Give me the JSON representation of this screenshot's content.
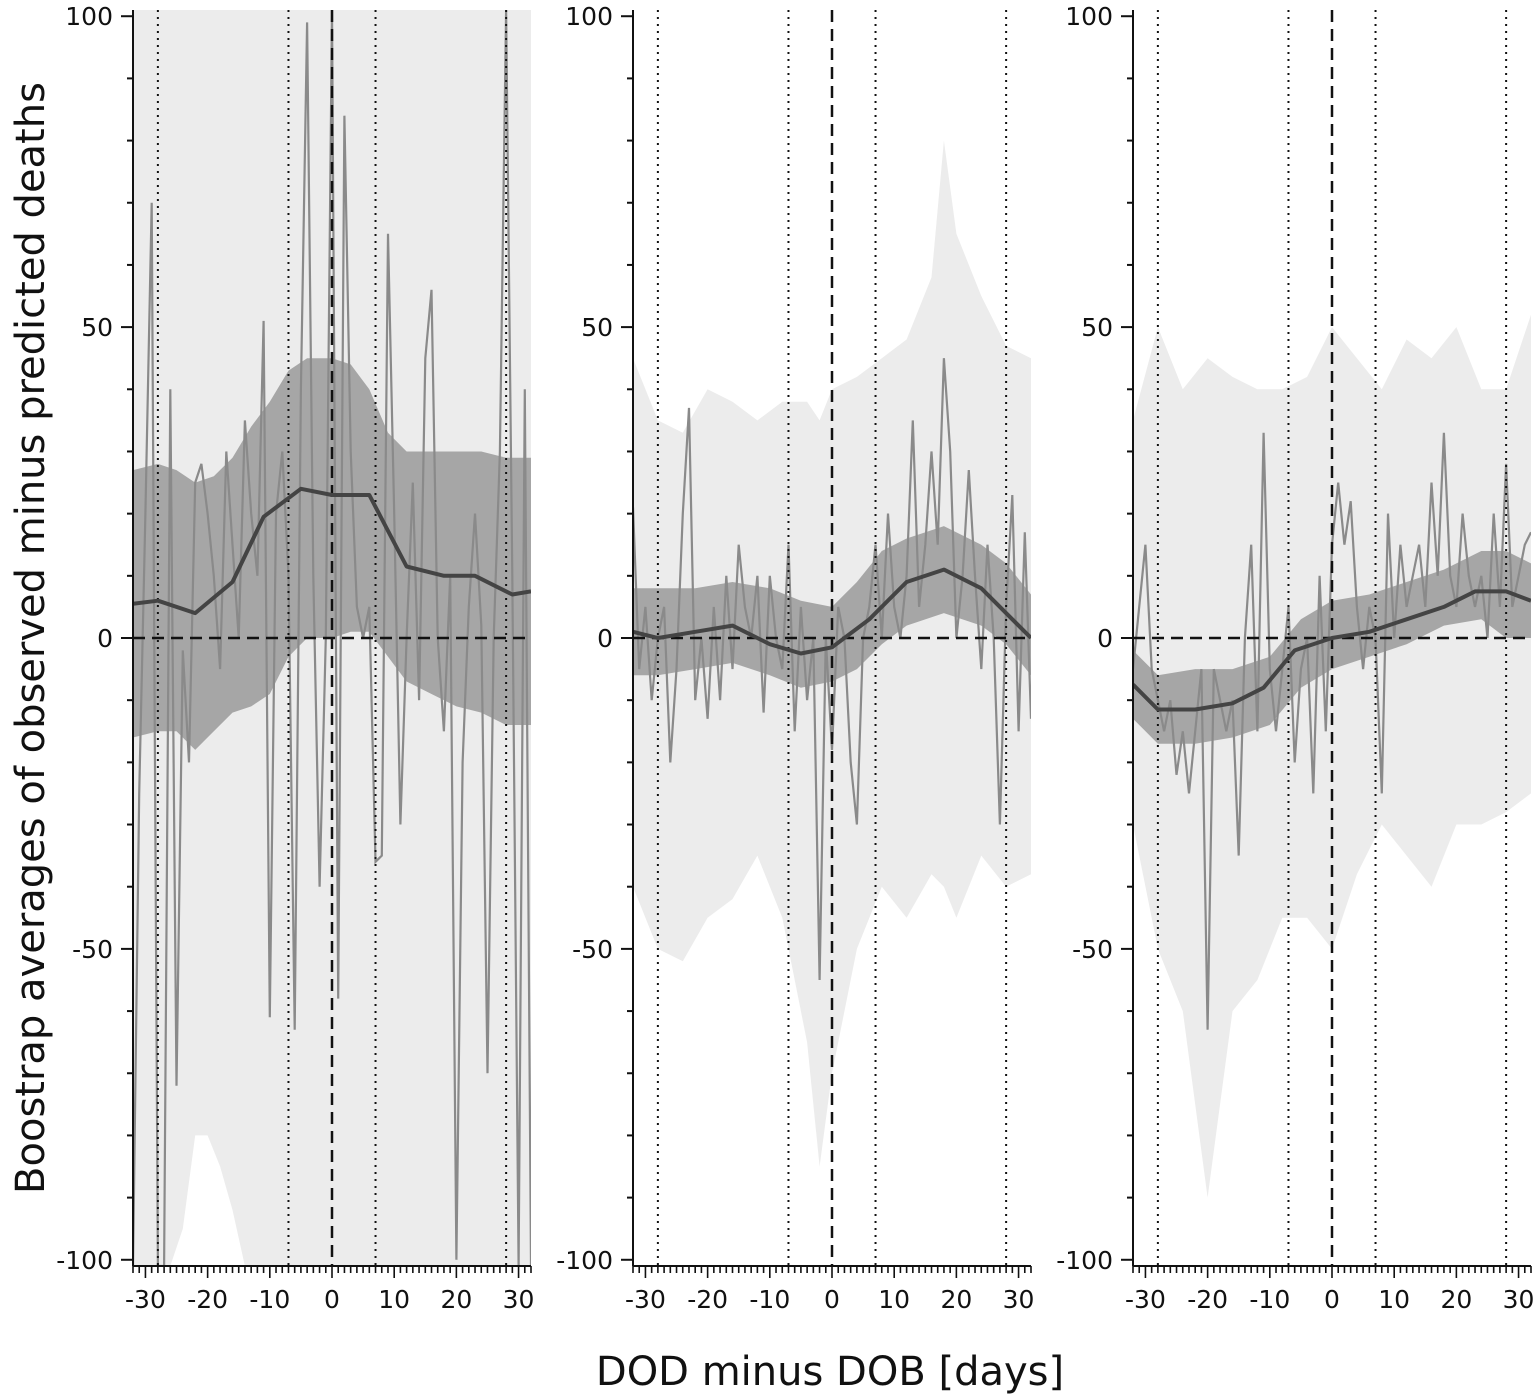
{
  "figure": {
    "xlabel": "DOD minus DOB [days]",
    "ylabel": "Boostrap averages of observed minus predicted deaths"
  },
  "chart_data": [
    {
      "type": "line",
      "panel": "left",
      "xlim": [
        -32,
        32
      ],
      "ylim": [
        -101,
        101
      ],
      "x_ticks": [
        -30,
        -20,
        -10,
        0,
        10,
        20,
        30
      ],
      "x_tick_labels": [
        "-30",
        "-20",
        "-10",
        "0",
        "10",
        "20",
        "30"
      ],
      "y_ticks": [
        -100,
        -50,
        0,
        50,
        100
      ],
      "y_tick_labels": [
        "-100",
        "-50",
        "0",
        "50",
        "100"
      ],
      "reference_lines": {
        "dashed": [
          0
        ],
        "dotted": [
          -28,
          -7,
          7,
          28
        ],
        "horizontal_dashed": 0
      },
      "outer_band": {
        "x": [
          -32,
          -30,
          -28,
          -26,
          -24,
          -22,
          -20,
          -18,
          -16,
          -14,
          -12,
          -10,
          -8,
          -6,
          -4,
          -2,
          0,
          2,
          4,
          6,
          8,
          10,
          12,
          14,
          16,
          18,
          20,
          22,
          24,
          26,
          28,
          30,
          32
        ],
        "lower": [
          -101,
          -101,
          -101,
          -101,
          -95,
          -80,
          -80,
          -85,
          -92,
          -101,
          -101,
          -101,
          -101,
          -101,
          -101,
          -101,
          -101,
          -101,
          -101,
          -101,
          -101,
          -101,
          -101,
          -101,
          -101,
          -101,
          -101,
          -101,
          -101,
          -101,
          -101,
          -101,
          -101
        ],
        "upper": [
          101,
          101,
          101,
          101,
          101,
          101,
          101,
          101,
          101,
          101,
          101,
          101,
          101,
          101,
          101,
          101,
          101,
          101,
          101,
          101,
          101,
          101,
          101,
          101,
          101,
          101,
          101,
          101,
          101,
          101,
          101,
          101,
          101
        ]
      },
      "inner_band": {
        "x": [
          -32,
          -28,
          -25,
          -22,
          -19,
          -16,
          -13,
          -10,
          -7,
          -4,
          0,
          3,
          6,
          9,
          12,
          16,
          20,
          24,
          28,
          32
        ],
        "lower": [
          -16,
          -15,
          -15,
          -18,
          -15,
          -12,
          -11,
          -9,
          -3,
          0,
          0,
          1,
          1,
          -3,
          -7,
          -9,
          -11,
          -12,
          -14,
          -14
        ],
        "upper": [
          27,
          28,
          27,
          25,
          26,
          29,
          34,
          38,
          43,
          45,
          45,
          44,
          40,
          33,
          30,
          30,
          30,
          30,
          29,
          29
        ]
      },
      "mean_line": {
        "x": [
          -32,
          -28,
          -22,
          -16,
          -11,
          -5,
          0,
          6,
          12,
          18,
          23,
          29,
          32
        ],
        "y": [
          5.5,
          6,
          4,
          9,
          19.5,
          24,
          23,
          23,
          11.5,
          10,
          10,
          7,
          7.5
        ]
      },
      "raw_series": {
        "x": [
          -32,
          -31,
          -30,
          -29,
          -28,
          -27,
          -26,
          -25,
          -24,
          -23,
          -22,
          -21,
          -20,
          -19,
          -18,
          -17,
          -16,
          -15,
          -14,
          -13,
          -12,
          -11,
          -10,
          -9,
          -8,
          -7,
          -6,
          -5,
          -4,
          -3,
          -2,
          -1,
          0,
          1,
          2,
          3,
          4,
          5,
          6,
          7,
          8,
          9,
          10,
          11,
          12,
          13,
          14,
          15,
          16,
          17,
          18,
          19,
          20,
          21,
          22,
          23,
          24,
          25,
          26,
          27,
          28,
          29,
          30,
          31,
          32
        ],
        "y": [
          -101,
          -25,
          20,
          70,
          -101,
          -101,
          40,
          -72,
          -2,
          -20,
          25,
          28,
          20,
          10,
          -5,
          30,
          15,
          0,
          35,
          20,
          10,
          51,
          -61,
          20,
          30,
          10,
          -63,
          40,
          99,
          10,
          -40,
          0,
          101,
          -58,
          84,
          30,
          5,
          0,
          5,
          -36,
          -35,
          65,
          20,
          -30,
          0,
          25,
          -10,
          45,
          56,
          0,
          -15,
          10,
          -100,
          -20,
          5,
          20,
          2,
          -70,
          0,
          30,
          101,
          10,
          -101,
          40,
          -101
        ]
      }
    },
    {
      "type": "line",
      "panel": "middle",
      "xlim": [
        -32,
        32
      ],
      "ylim": [
        -101,
        101
      ],
      "x_ticks": [
        -30,
        -20,
        -10,
        0,
        10,
        20,
        30
      ],
      "x_tick_labels": [
        "-30",
        "-20",
        "-10",
        "0",
        "10",
        "20",
        "30"
      ],
      "y_ticks": [
        -100,
        -50,
        0,
        50,
        100
      ],
      "y_tick_labels": [
        "-100",
        "-50",
        "0",
        "50",
        "100"
      ],
      "reference_lines": {
        "dashed": [
          0
        ],
        "dotted": [
          -28,
          -7,
          7,
          28
        ],
        "horizontal_dashed": 0
      },
      "outer_band": {
        "x": [
          -32,
          -28,
          -24,
          -20,
          -16,
          -12,
          -8,
          -4,
          -2,
          0,
          4,
          8,
          12,
          16,
          18,
          20,
          24,
          28,
          32
        ],
        "lower": [
          -40,
          -50,
          -52,
          -45,
          -42,
          -35,
          -45,
          -65,
          -85,
          -70,
          -50,
          -40,
          -45,
          -38,
          -40,
          -45,
          -35,
          -40,
          -38
        ],
        "upper": [
          45,
          35,
          33,
          40,
          38,
          35,
          38,
          38,
          35,
          40,
          42,
          45,
          48,
          58,
          80,
          65,
          55,
          47,
          45
        ]
      },
      "inner_band": {
        "x": [
          -32,
          -28,
          -22,
          -16,
          -10,
          -5,
          0,
          4,
          8,
          12,
          18,
          24,
          28,
          32
        ],
        "lower": [
          -6,
          -6,
          -5,
          -4,
          -6,
          -8,
          -7,
          -5,
          -1,
          2,
          4,
          2,
          -1,
          -6
        ],
        "upper": [
          8,
          8,
          8,
          9,
          8,
          6,
          5,
          9,
          14,
          16,
          18,
          15,
          12,
          7
        ]
      },
      "mean_line": {
        "x": [
          -32,
          -28,
          -22,
          -16,
          -10,
          -5,
          0,
          6,
          12,
          18,
          24,
          32
        ],
        "y": [
          1,
          0,
          1,
          2,
          -1,
          -2.5,
          -1.5,
          3,
          9,
          11,
          8,
          0
        ]
      },
      "raw_series": {
        "x": [
          -32,
          -31,
          -30,
          -29,
          -28,
          -27,
          -26,
          -25,
          -24,
          -23,
          -22,
          -21,
          -20,
          -19,
          -18,
          -17,
          -16,
          -15,
          -14,
          -13,
          -12,
          -11,
          -10,
          -9,
          -8,
          -7,
          -6,
          -5,
          -4,
          -3,
          -2,
          -1,
          0,
          1,
          2,
          3,
          4,
          5,
          6,
          7,
          8,
          9,
          10,
          11,
          12,
          13,
          14,
          15,
          16,
          17,
          18,
          19,
          20,
          21,
          22,
          23,
          24,
          25,
          26,
          27,
          28,
          29,
          30,
          31,
          32
        ],
        "y": [
          21,
          -5,
          5,
          -10,
          0,
          5,
          -20,
          -5,
          20,
          37,
          -10,
          0,
          -13,
          5,
          -10,
          10,
          -5,
          15,
          5,
          0,
          10,
          -12,
          10,
          0,
          -5,
          15,
          -15,
          5,
          -10,
          0,
          -55,
          0,
          -18,
          5,
          0,
          -20,
          -30,
          0,
          5,
          15,
          0,
          20,
          5,
          0,
          10,
          35,
          5,
          15,
          30,
          15,
          45,
          30,
          0,
          10,
          27,
          10,
          -5,
          15,
          0,
          -30,
          5,
          23,
          -15,
          17,
          -13
        ]
      }
    },
    {
      "type": "line",
      "panel": "right",
      "xlim": [
        -32,
        32
      ],
      "ylim": [
        -101,
        101
      ],
      "x_ticks": [
        -30,
        -20,
        -10,
        0,
        10,
        20,
        30
      ],
      "x_tick_labels": [
        "-30",
        "-20",
        "-10",
        "0",
        "10",
        "20",
        "30"
      ],
      "y_ticks": [
        -100,
        -50,
        0,
        50,
        100
      ],
      "y_tick_labels": [
        "-100",
        "-50",
        "0",
        "50",
        "100"
      ],
      "reference_lines": {
        "dashed": [
          0
        ],
        "dotted": [
          -28,
          -7,
          7,
          28
        ],
        "horizontal_dashed": 0
      },
      "outer_band": {
        "x": [
          -32,
          -28,
          -24,
          -20,
          -16,
          -12,
          -8,
          -4,
          0,
          4,
          8,
          12,
          16,
          20,
          24,
          28,
          32
        ],
        "lower": [
          -30,
          -50,
          -60,
          -90,
          -60,
          -55,
          -45,
          -45,
          -50,
          -38,
          -30,
          -35,
          -40,
          -30,
          -30,
          -28,
          -25
        ],
        "upper": [
          35,
          50,
          40,
          45,
          42,
          40,
          40,
          42,
          50,
          45,
          40,
          48,
          45,
          50,
          40,
          40,
          52
        ]
      },
      "inner_band": {
        "x": [
          -32,
          -28,
          -22,
          -16,
          -10,
          -5,
          0,
          6,
          12,
          18,
          24,
          28,
          32
        ],
        "lower": [
          -13,
          -17,
          -17,
          -16,
          -14,
          -8,
          -5,
          -3,
          -1,
          2,
          3,
          0,
          0
        ],
        "upper": [
          -2,
          -6,
          -5,
          -5,
          -3,
          3,
          6,
          7,
          9,
          11,
          14,
          14,
          12
        ]
      },
      "mean_line": {
        "x": [
          -32,
          -28,
          -22,
          -16,
          -11,
          -6,
          0,
          6,
          12,
          18,
          23,
          28,
          32
        ],
        "y": [
          -7.5,
          -11.5,
          -11.5,
          -10.5,
          -8,
          -2,
          0,
          1,
          3,
          5,
          7.5,
          7.5,
          6
        ]
      },
      "raw_series": {
        "x": [
          -32,
          -31,
          -30,
          -29,
          -28,
          -27,
          -26,
          -25,
          -24,
          -23,
          -22,
          -21,
          -20,
          -19,
          -18,
          -17,
          -16,
          -15,
          -14,
          -13,
          -12,
          -11,
          -10,
          -9,
          -8,
          -7,
          -6,
          -5,
          -4,
          -3,
          -2,
          -1,
          0,
          1,
          2,
          3,
          4,
          5,
          6,
          7,
          8,
          9,
          10,
          11,
          12,
          13,
          14,
          15,
          16,
          17,
          18,
          19,
          20,
          21,
          22,
          23,
          24,
          25,
          26,
          27,
          28,
          29,
          30,
          31,
          32
        ],
        "y": [
          -5,
          5,
          15,
          -5,
          -10,
          -15,
          -10,
          -22,
          -15,
          -25,
          -15,
          -5,
          -63,
          -5,
          -10,
          -15,
          -10,
          -35,
          0,
          15,
          -15,
          33,
          -5,
          -15,
          -5,
          5,
          -20,
          -5,
          0,
          -25,
          10,
          -15,
          15,
          25,
          15,
          22,
          5,
          -5,
          5,
          0,
          -25,
          20,
          0,
          15,
          5,
          10,
          15,
          5,
          25,
          10,
          33,
          10,
          5,
          20,
          10,
          5,
          10,
          0,
          20,
          5,
          28,
          5,
          10,
          15,
          17
        ]
      }
    }
  ]
}
